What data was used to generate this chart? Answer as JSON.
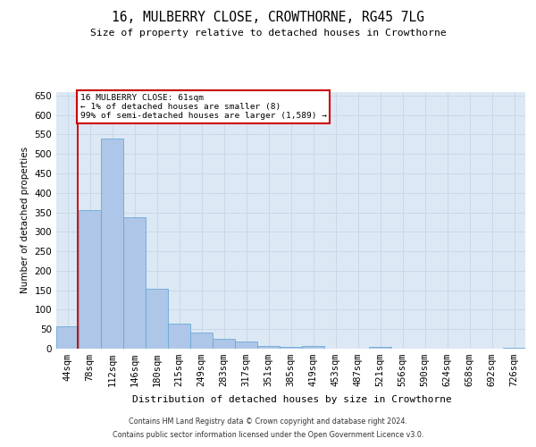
{
  "title": "16, MULBERRY CLOSE, CROWTHORNE, RG45 7LG",
  "subtitle": "Size of property relative to detached houses in Crowthorne",
  "xlabel": "Distribution of detached houses by size in Crowthorne",
  "ylabel": "Number of detached properties",
  "categories": [
    "44sqm",
    "78sqm",
    "112sqm",
    "146sqm",
    "180sqm",
    "215sqm",
    "249sqm",
    "283sqm",
    "317sqm",
    "351sqm",
    "385sqm",
    "419sqm",
    "453sqm",
    "487sqm",
    "521sqm",
    "556sqm",
    "590sqm",
    "624sqm",
    "658sqm",
    "692sqm",
    "726sqm"
  ],
  "values": [
    57,
    355,
    540,
    338,
    153,
    65,
    42,
    25,
    18,
    8,
    5,
    8,
    0,
    0,
    5,
    0,
    0,
    0,
    0,
    0,
    2
  ],
  "bar_color": "#aec6e8",
  "bar_edge_color": "#6aaad4",
  "red_line_x": 0.47,
  "annotation_text_line1": "16 MULBERRY CLOSE: 61sqm",
  "annotation_text_line2": "← 1% of detached houses are smaller (8)",
  "annotation_text_line3": "99% of semi-detached houses are larger (1,589) →",
  "annotation_box_facecolor": "#ffffff",
  "annotation_box_edgecolor": "#cc0000",
  "ylim": [
    0,
    660
  ],
  "ytick_interval": 50,
  "grid_color": "#c8d8e8",
  "plot_bg_color": "#dde8f5",
  "footer_line1": "Contains HM Land Registry data © Crown copyright and database right 2024.",
  "footer_line2": "Contains public sector information licensed under the Open Government Licence v3.0."
}
